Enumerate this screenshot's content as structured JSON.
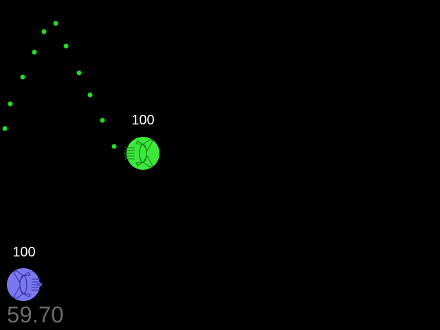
{
  "game": {
    "fps": "59.70",
    "players": [
      {
        "id": "green",
        "health": "100",
        "color": "#3de83d",
        "outline": "#1a8a1a",
        "icon": "ship-icon",
        "facing": "left"
      },
      {
        "id": "blue",
        "health": "100",
        "color": "#7a78f0",
        "outline": "#3b3aa8",
        "icon": "ship-icon",
        "facing": "right"
      }
    ],
    "bullet_color": "#22dd22"
  }
}
